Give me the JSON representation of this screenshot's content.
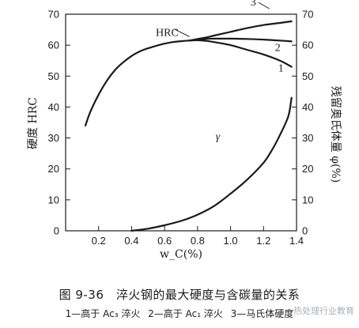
{
  "chart_data": {
    "type": "line",
    "xlabel": "w_C(%)",
    "ylabel_left": "硬度 HRC",
    "ylabel_right": "残留奥氏体量 φ(%)",
    "xlim": [
      0.0,
      1.4
    ],
    "ylim_left": [
      0,
      70
    ],
    "ylim_right": [
      0,
      70
    ],
    "xticks": [
      "0.2",
      "0.4",
      "0.6",
      "0.8",
      "1.0",
      "1.2",
      "1.4"
    ],
    "yticks_left": [
      "0",
      "10",
      "20",
      "30",
      "40",
      "50",
      "60",
      "70"
    ],
    "yticks_right": [
      "0",
      "10",
      "20",
      "30",
      "40",
      "50",
      "60",
      "70"
    ],
    "grid": false,
    "series": [
      {
        "name": "HRC",
        "label": "HRC",
        "axis": "left",
        "x": [
          0.12,
          0.15,
          0.2,
          0.25,
          0.3,
          0.35,
          0.4,
          0.45,
          0.5,
          0.55,
          0.6,
          0.65,
          0.7,
          0.75
        ],
        "y": [
          34,
          38.5,
          44,
          48.5,
          52,
          54.5,
          56.5,
          58,
          59,
          59.8,
          60.5,
          61,
          61.3,
          61.5
        ]
      },
      {
        "name": "1",
        "label": "1",
        "axis": "left",
        "x": [
          0.75,
          0.8,
          0.85,
          0.9,
          1.0,
          1.1,
          1.2,
          1.3,
          1.37
        ],
        "y": [
          61.5,
          61.6,
          61.4,
          61,
          60,
          58.5,
          57,
          55,
          53
        ]
      },
      {
        "name": "2",
        "label": "2",
        "axis": "left",
        "x": [
          0.75,
          0.85,
          0.9,
          1.0,
          1.1,
          1.2,
          1.3,
          1.37
        ],
        "y": [
          61.5,
          62,
          62.1,
          62.1,
          62,
          61.8,
          61.5,
          61.2
        ]
      },
      {
        "name": "3",
        "label": "3",
        "axis": "left",
        "x": [
          0.75,
          0.85,
          0.9,
          1.0,
          1.1,
          1.2,
          1.3,
          1.37
        ],
        "y": [
          61.5,
          62.5,
          63.1,
          64.3,
          65.5,
          66.5,
          67.2,
          67.7
        ]
      },
      {
        "name": "γ",
        "label": "γ",
        "axis": "right",
        "x": [
          0.4,
          0.5,
          0.6,
          0.7,
          0.8,
          0.9,
          1.0,
          1.1,
          1.2,
          1.25,
          1.3,
          1.35,
          1.37
        ],
        "y": [
          0,
          0.7,
          1.8,
          3.2,
          5.2,
          8,
          12,
          16.5,
          22,
          26,
          31,
          37,
          43
        ]
      }
    ]
  },
  "caption": {
    "title": "图 9-36　淬火钢的最大硬度与含碳量的关系",
    "legend_items": [
      "1—高于 Ac₃ 淬火",
      "2—高于 Ac₁ 淬火",
      "3—马氏体硬度"
    ]
  },
  "watermark": "热处理行业教育",
  "colors": {
    "ink": "#1a1a1a",
    "background": "#ffffff"
  }
}
